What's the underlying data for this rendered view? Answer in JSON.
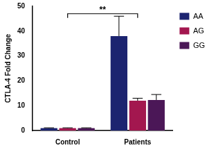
{
  "chart_data": {
    "type": "bar",
    "y_label": "CTLA-4 Fold Change",
    "categories": [
      "Control",
      "Patients"
    ],
    "series": [
      {
        "name": "AA",
        "color": "#1c2470",
        "values": [
          1,
          38
        ],
        "errors": [
          0.1,
          8
        ]
      },
      {
        "name": "AG",
        "color": "#a3174f",
        "values": [
          1,
          12
        ],
        "errors": [
          0.1,
          1
        ]
      },
      {
        "name": "GG",
        "color": "#4b1757",
        "values": [
          1,
          12.3
        ],
        "errors": [
          0.1,
          2.2
        ]
      }
    ],
    "ylim": [
      0,
      50
    ],
    "yticks": [
      0,
      10,
      20,
      30,
      40,
      50
    ],
    "grid": false,
    "legend": "upper right",
    "annotation": {
      "text": "**",
      "from": "Control",
      "to": "Patients",
      "y": 47
    }
  }
}
